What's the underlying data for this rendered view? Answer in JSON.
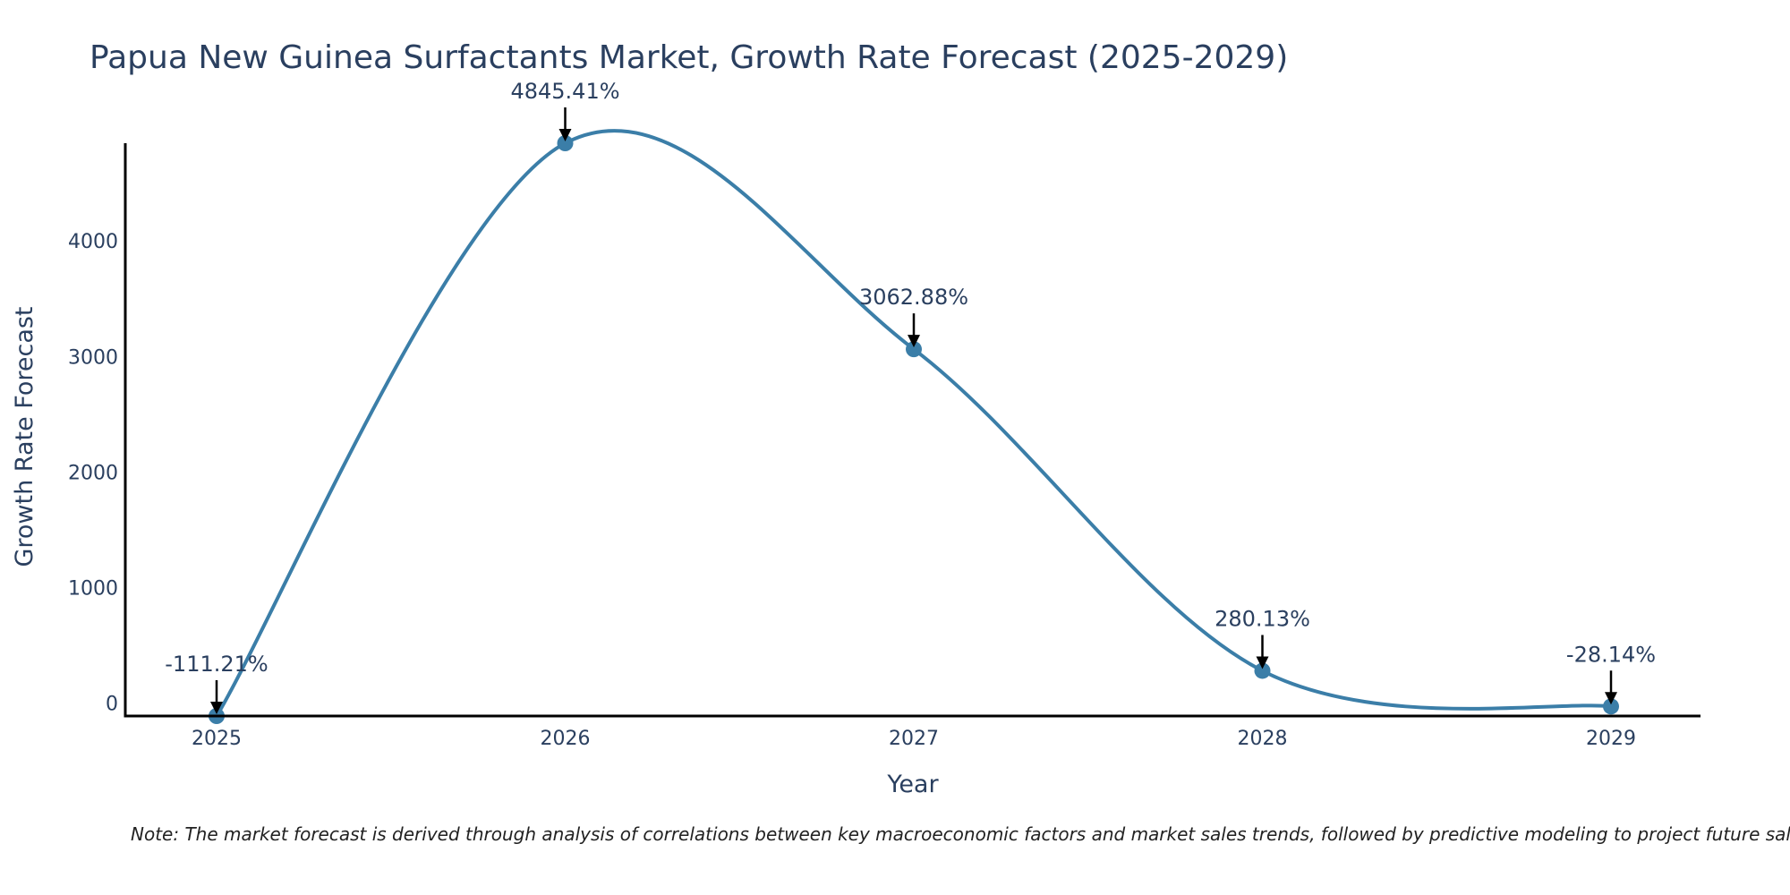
{
  "chart_data": {
    "type": "line",
    "title": "Papua New Guinea Surfactants Market, Growth Rate Forecast (2025-2029)",
    "xlabel": "Year",
    "ylabel": "Growth Rate Forecast",
    "categories": [
      "2025",
      "2026",
      "2027",
      "2028",
      "2029"
    ],
    "values": [
      -111.21,
      4845.41,
      3062.88,
      280.13,
      -28.14
    ],
    "labels": [
      "-111.21%",
      "4845.41%",
      "3062.88%",
      "280.13%",
      "-28.14%"
    ],
    "yticks": [
      0,
      1000,
      2000,
      3000,
      4000
    ],
    "ylim": [
      -111.21,
      4845.41
    ],
    "color": "#3b7ea8",
    "grid": false
  },
  "note": "Note: The market forecast is derived through analysis of correlations between key macroeconomic factors and market sales trends, followed by predictive modeling to project future sales."
}
